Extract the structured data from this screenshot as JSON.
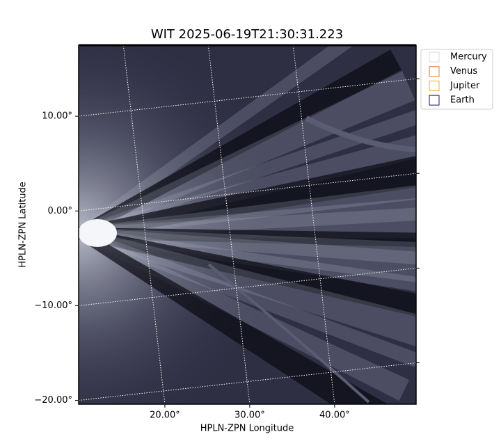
{
  "chart_data": {
    "type": "image",
    "title": "WIT 2025-06-19T21:30:31.223",
    "x_label": "HPLN-ZPN Longitude",
    "y_label": "HPLN-ZPN Latitude",
    "xlim": [
      9.84,
      49.6
    ],
    "ylim": [
      -20.4,
      17.5
    ],
    "xticks": [
      {
        "value": 20,
        "label": "20.00°"
      },
      {
        "value": 30,
        "label": "30.00°"
      },
      {
        "value": 40,
        "label": "40.00°"
      }
    ],
    "yticks": [
      {
        "value": 10,
        "label": "10.00°"
      },
      {
        "value": 0,
        "label": "0.00°"
      },
      {
        "value": -10,
        "label": "−10.00°"
      },
      {
        "value": -20,
        "label": "−20.00°"
      }
    ],
    "grid": true,
    "legend_position": "upper right",
    "legend_items": [
      {
        "label": "Mercury",
        "color": "#d8d8d8"
      },
      {
        "label": "Venus",
        "color": "#e07b39"
      },
      {
        "label": "Jupiter",
        "color": "#e8b221"
      },
      {
        "label": "Earth",
        "color": "#15157a"
      }
    ]
  }
}
